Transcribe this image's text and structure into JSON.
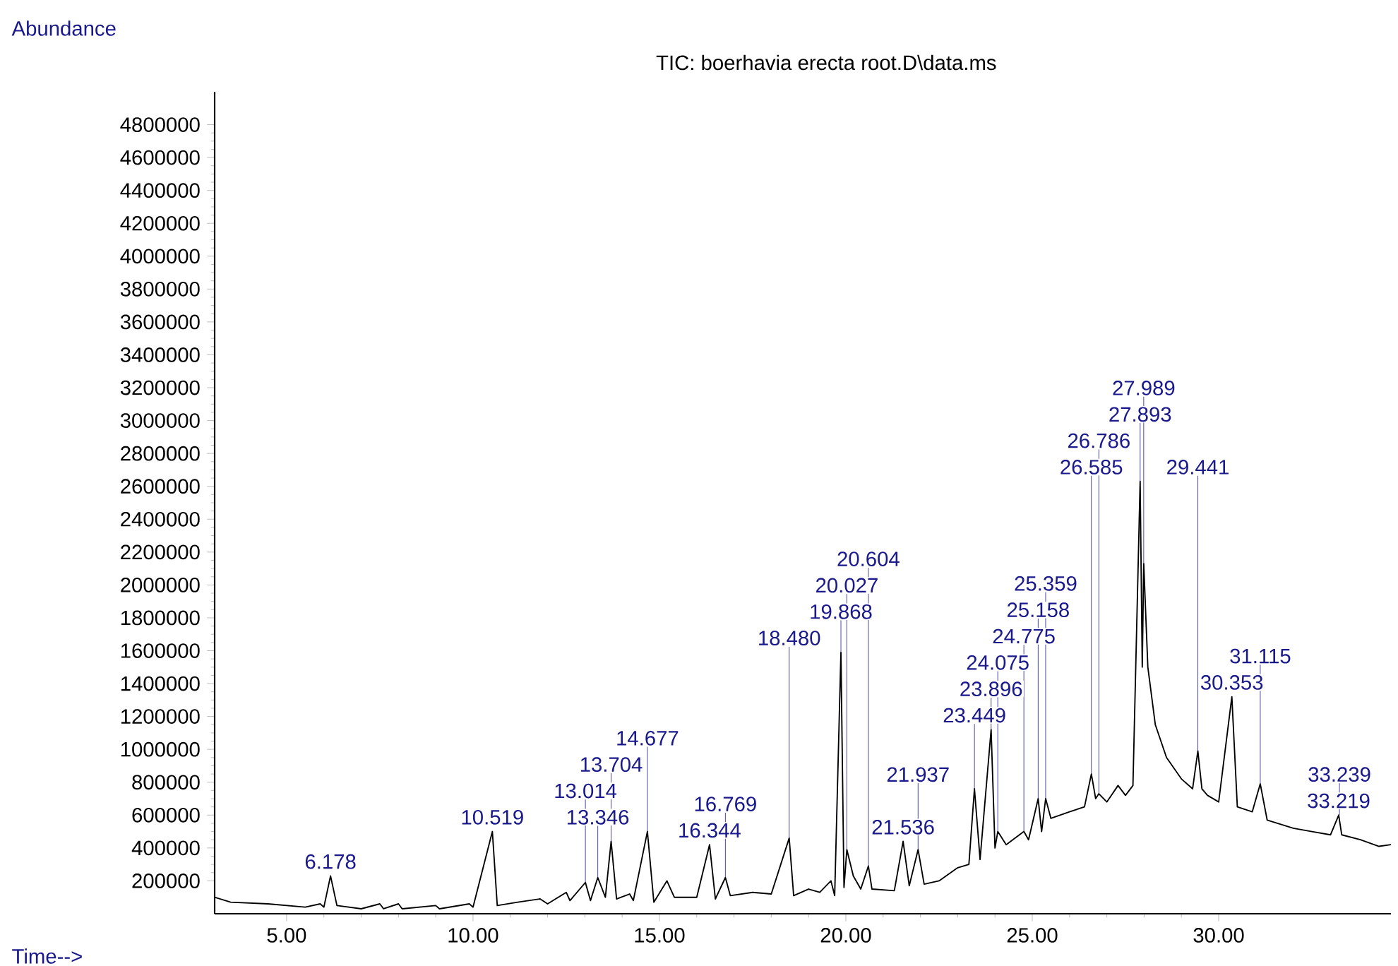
{
  "chart_data": {
    "type": "line",
    "title": "TIC: boerhavia erecta root.D\\data.ms",
    "xlabel": "Time-->",
    "ylabel": "Abundance",
    "xlim": [
      3.07,
      34.62
    ],
    "ylim": [
      0,
      5000000
    ],
    "xticks": [
      {
        "value": 5,
        "label": "5.00"
      },
      {
        "value": 10,
        "label": "10.00"
      },
      {
        "value": 15,
        "label": "15.00"
      },
      {
        "value": 20,
        "label": "20.00"
      },
      {
        "value": 25,
        "label": "25.00"
      },
      {
        "value": 30,
        "label": "30.00"
      }
    ],
    "yticks": [
      200000,
      400000,
      600000,
      800000,
      1000000,
      1200000,
      1400000,
      1600000,
      1800000,
      2000000,
      2200000,
      2400000,
      2600000,
      2800000,
      3000000,
      3200000,
      3400000,
      3600000,
      3800000,
      4000000,
      4200000,
      4400000,
      4600000,
      4800000
    ],
    "grid": false,
    "marker": "none",
    "line_style": "solid",
    "series": [
      {
        "color": "#000000",
        "x": [
          3.07,
          3.5,
          4.5,
          5.5,
          5.9,
          6.0,
          6.178,
          6.35,
          7.0,
          7.5,
          7.6,
          8.0,
          8.1,
          9.0,
          9.1,
          9.9,
          10.0,
          10.519,
          10.65,
          11.2,
          11.8,
          12.0,
          12.5,
          12.6,
          13.014,
          13.15,
          13.346,
          13.55,
          13.704,
          13.85,
          14.2,
          14.3,
          14.677,
          14.85,
          15.2,
          15.4,
          16.0,
          16.344,
          16.5,
          16.769,
          16.9,
          17.5,
          18.0,
          18.48,
          18.6,
          19.0,
          19.3,
          19.6,
          19.7,
          19.868,
          19.95,
          20.027,
          20.2,
          20.4,
          20.604,
          20.7,
          21.3,
          21.536,
          21.7,
          21.937,
          22.1,
          22.5,
          23.0,
          23.3,
          23.449,
          23.6,
          23.896,
          24.0,
          24.075,
          24.3,
          24.775,
          24.9,
          25.158,
          25.25,
          25.359,
          25.5,
          26.0,
          26.4,
          26.585,
          26.7,
          26.786,
          27.0,
          27.3,
          27.5,
          27.7,
          27.893,
          27.95,
          27.989,
          28.1,
          28.3,
          28.6,
          29.0,
          29.3,
          29.441,
          29.55,
          29.7,
          30.0,
          30.353,
          30.5,
          30.9,
          31.115,
          31.3,
          32.0,
          32.5,
          33.0,
          33.219,
          33.3,
          33.8,
          34.3,
          34.62
        ],
        "values": [
          100000,
          70000,
          60000,
          40000,
          60000,
          40000,
          230000,
          50000,
          30000,
          60000,
          30000,
          60000,
          30000,
          50000,
          30000,
          60000,
          40000,
          500000,
          50000,
          70000,
          90000,
          60000,
          130000,
          80000,
          190000,
          80000,
          220000,
          100000,
          440000,
          90000,
          120000,
          80000,
          500000,
          70000,
          200000,
          100000,
          100000,
          420000,
          90000,
          220000,
          110000,
          130000,
          120000,
          460000,
          110000,
          150000,
          130000,
          200000,
          110000,
          1590000,
          160000,
          390000,
          230000,
          150000,
          290000,
          150000,
          140000,
          440000,
          170000,
          390000,
          180000,
          200000,
          280000,
          300000,
          760000,
          330000,
          1120000,
          400000,
          500000,
          420000,
          500000,
          450000,
          700000,
          500000,
          700000,
          580000,
          620000,
          650000,
          850000,
          700000,
          730000,
          680000,
          780000,
          720000,
          780000,
          2630000,
          1500000,
          2130000,
          1500000,
          1150000,
          950000,
          820000,
          760000,
          990000,
          760000,
          720000,
          680000,
          1320000,
          650000,
          620000,
          790000,
          570000,
          520000,
          500000,
          480000,
          600000,
          480000,
          450000,
          410000,
          420000
        ]
      }
    ],
    "annotations": [
      {
        "text": "6.178",
        "x": 6.178,
        "y": 230000
      },
      {
        "text": "10.519",
        "x": 10.519,
        "y": 500000
      },
      {
        "text": "13.014",
        "x": 13.014,
        "y": 190000
      },
      {
        "text": "13.346",
        "x": 13.346,
        "y": 220000
      },
      {
        "text": "13.704",
        "x": 13.704,
        "y": 440000
      },
      {
        "text": "14.677",
        "x": 14.677,
        "y": 500000
      },
      {
        "text": "16.344",
        "x": 16.344,
        "y": 420000
      },
      {
        "text": "16.769",
        "x": 16.769,
        "y": 220000
      },
      {
        "text": "18.480",
        "x": 18.48,
        "y": 460000
      },
      {
        "text": "19.868",
        "x": 19.868,
        "y": 1590000
      },
      {
        "text": "20.027",
        "x": 20.027,
        "y": 390000
      },
      {
        "text": "20.604",
        "x": 20.604,
        "y": 290000
      },
      {
        "text": "21.536",
        "x": 21.536,
        "y": 440000
      },
      {
        "text": "21.937",
        "x": 21.937,
        "y": 390000
      },
      {
        "text": "23.449",
        "x": 23.449,
        "y": 760000
      },
      {
        "text": "23.896",
        "x": 23.896,
        "y": 1120000
      },
      {
        "text": "24.075",
        "x": 24.075,
        "y": 500000
      },
      {
        "text": "24.775",
        "x": 24.775,
        "y": 500000
      },
      {
        "text": "25.158",
        "x": 25.158,
        "y": 700000
      },
      {
        "text": "25.359",
        "x": 25.359,
        "y": 700000
      },
      {
        "text": "26.585",
        "x": 26.585,
        "y": 850000
      },
      {
        "text": "26.786",
        "x": 26.786,
        "y": 730000
      },
      {
        "text": "27.893",
        "x": 27.893,
        "y": 2630000
      },
      {
        "text": "27.989",
        "x": 27.989,
        "y": 2130000
      },
      {
        "text": "29.441",
        "x": 29.441,
        "y": 990000
      },
      {
        "text": "30.353",
        "x": 30.353,
        "y": 1320000
      },
      {
        "text": "31.115",
        "x": 31.115,
        "y": 790000
      },
      {
        "text": "33.219",
        "x": 33.219,
        "y": 600000
      },
      {
        "text": "33.239",
        "x": 33.239,
        "y": 600000
      }
    ]
  }
}
